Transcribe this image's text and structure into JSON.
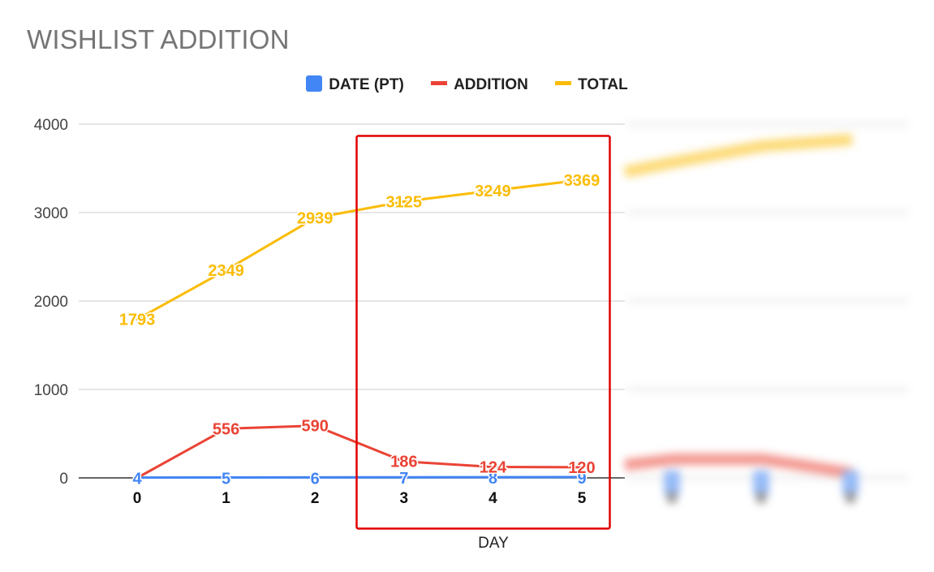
{
  "chart_data": {
    "type": "line",
    "title": "WISHLIST ADDITION",
    "xlabel": "DAY",
    "ylabel": "",
    "x": [
      0,
      1,
      2,
      3,
      4,
      5
    ],
    "ylim": [
      0,
      4000
    ],
    "yticks": [
      "0",
      "1000",
      "2000",
      "3000",
      "4000"
    ],
    "grid": true,
    "legend_position": "top",
    "series": [
      {
        "name": "DATE (PT)",
        "color": "#4285f4",
        "values": [
          4,
          5,
          6,
          7,
          8,
          9
        ]
      },
      {
        "name": "ADDITION",
        "color": "#ea4335",
        "values": [
          0,
          556,
          590,
          186,
          124,
          120
        ]
      },
      {
        "name": "TOTAL",
        "color": "#fbbc04",
        "values": [
          1793,
          2349,
          2939,
          3125,
          3249,
          3369
        ]
      }
    ],
    "data_labels": {
      "DATE (PT)": [
        "4",
        "5",
        "6",
        "7",
        "8",
        "9"
      ],
      "ADDITION": [
        "",
        "556",
        "590",
        "186",
        "124",
        "120"
      ],
      "TOTAL": [
        "1793",
        "2349",
        "2939",
        "3125",
        "3249",
        "3369"
      ]
    },
    "highlight_color": "#e00000"
  }
}
